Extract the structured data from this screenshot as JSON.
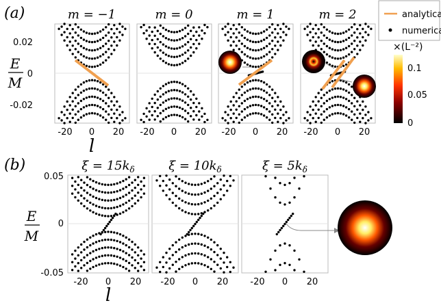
{
  "legend": {
    "analytical": "analytical",
    "numerical": "numerical",
    "line_color": "#f0a050",
    "dot_color": "#000000"
  },
  "colorbar": {
    "unit_label": "×(L⁻²)",
    "ticks": [
      "0.1",
      "0.05",
      "0"
    ],
    "colormap": "hot"
  },
  "panel_a": {
    "tag": "(a)",
    "ylabel_num": "E",
    "ylabel_den": "M",
    "xlabel": "l",
    "yticks": [
      "0.02",
      "0",
      "-0.02"
    ],
    "xticks": [
      "-20",
      "0",
      "20"
    ],
    "titles": [
      "m = −1",
      "m = 0",
      "m = 1",
      "m = 2"
    ]
  },
  "panel_b": {
    "tag": "(b)",
    "ylabel_num": "E",
    "ylabel_den": "M",
    "xlabel": "l",
    "yticks": [
      "0.05",
      "0",
      "-0.05"
    ],
    "xticks": [
      "-20",
      "0",
      "20"
    ],
    "titles": [
      "ξ = 15k",
      "ξ = 10k",
      "ξ = 5k"
    ],
    "title_subscript": "δ"
  },
  "chart_data": [
    {
      "type": "scatter",
      "panel": "(a) m = -1",
      "xlim": [
        -27,
        27
      ],
      "ylim": [
        -0.03,
        0.03
      ],
      "band_bottom_energies": [
        0.004,
        0.009,
        0.014,
        0.019,
        0.024
      ],
      "band_curvature": 0.0004,
      "analytical_line": {
        "x": [
          -10,
          10
        ],
        "y": [
          0.01,
          -0.008
        ]
      }
    },
    {
      "type": "scatter",
      "panel": "(a) m = 0",
      "xlim": [
        -27,
        27
      ],
      "ylim": [
        -0.03,
        0.03
      ],
      "band_bottom_energies": [
        0.005,
        0.01,
        0.015,
        0.02,
        0.025
      ],
      "band_curvature": 0.0004
    },
    {
      "type": "scatter",
      "panel": "(a) m = 1",
      "xlim": [
        -27,
        27
      ],
      "ylim": [
        -0.03,
        0.03
      ],
      "band_bottom_energies": [
        0.004,
        0.009,
        0.014,
        0.019,
        0.024
      ],
      "band_curvature": 0.0004,
      "analytical_line": {
        "x": [
          -12,
          12
        ],
        "y": [
          -0.009,
          0.009
        ]
      }
    },
    {
      "type": "scatter",
      "panel": "(a) m = 2",
      "xlim": [
        -27,
        27
      ],
      "ylim": [
        -0.03,
        0.03
      ],
      "band_bottom_energies": [
        0.004,
        0.009,
        0.014,
        0.019,
        0.024
      ],
      "band_curvature": 0.0004,
      "analytical_lines": [
        {
          "x": [
            -12,
            8
          ],
          "y": [
            -0.016,
            0.008
          ]
        },
        {
          "x": [
            -8,
            12
          ],
          "y": [
            -0.008,
            0.016
          ]
        }
      ]
    },
    {
      "type": "scatter",
      "panel": "(b) ξ = 15kδ",
      "xlim": [
        -27,
        27
      ],
      "ylim": [
        -0.05,
        0.05
      ],
      "band_bottom_energies": [
        0.008,
        0.016,
        0.024,
        0.032,
        0.04
      ],
      "band_curvature": 0.0004
    },
    {
      "type": "scatter",
      "panel": "(b) ξ = 10kδ",
      "xlim": [
        -27,
        27
      ],
      "ylim": [
        -0.05,
        0.05
      ],
      "band_bottom_energies": [
        0.01,
        0.02,
        0.03,
        0.04
      ],
      "band_curvature": 0.0006
    },
    {
      "type": "scatter",
      "panel": "(b) ξ = 5kδ",
      "xlim": [
        -27,
        27
      ],
      "ylim": [
        -0.05,
        0.05
      ],
      "band_bottom_energies": [
        0.02,
        0.04
      ],
      "band_curvature": 0.002
    }
  ]
}
